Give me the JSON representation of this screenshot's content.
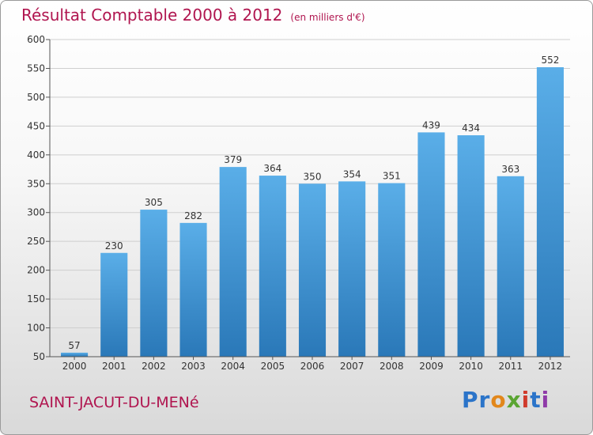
{
  "header": {
    "title": "Résultat Comptable 2000 à 2012",
    "subtitle": "(en milliers d'€)"
  },
  "footer": {
    "town": "SAINT-JACUT-DU-MENé",
    "logo_letters": [
      "P",
      "r",
      "o",
      "x",
      "i",
      "t",
      "i"
    ]
  },
  "chart_data": {
    "type": "bar",
    "title": "Résultat Comptable 2000 à 2012",
    "subtitle": "(en milliers d'€)",
    "categories": [
      "2000",
      "2001",
      "2002",
      "2003",
      "2004",
      "2005",
      "2006",
      "2007",
      "2008",
      "2009",
      "2010",
      "2011",
      "2012"
    ],
    "values": [
      57,
      230,
      305,
      282,
      379,
      364,
      350,
      354,
      351,
      439,
      434,
      363,
      552
    ],
    "ylim": [
      50,
      600
    ],
    "yticks": [
      50,
      100,
      150,
      200,
      250,
      300,
      350,
      400,
      450,
      500,
      550,
      600
    ],
    "grid": true,
    "colors": {
      "bar_top": "#5aaee8",
      "bar_bottom": "#2a78b8",
      "grid": "#cfcfcf"
    }
  }
}
